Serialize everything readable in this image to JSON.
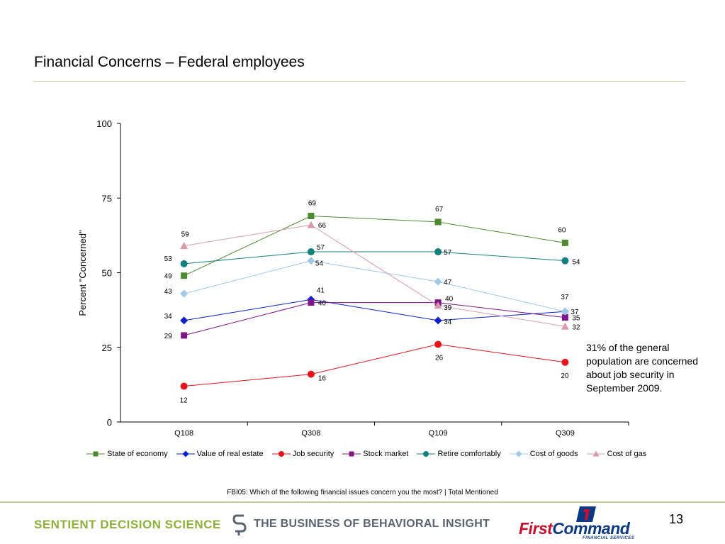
{
  "slide": {
    "title": "Financial Concerns – Federal employees",
    "page_number": "13"
  },
  "annotation": "31% of the general population are concerned about job security in September 2009.",
  "footnote": "FBI05: Which of the following financial issues concern you the most? | Total Mentioned",
  "footer": {
    "sentient_logo": "SENTIENT DECISION SCIENCE",
    "tagline": "THE BUSINESS OF BEHAVIORAL INSIGHT",
    "partner_logo_first": "First",
    "partner_logo_command": "Command",
    "partner_logo_sub": "FINANCIAL SERVICES"
  },
  "chart_data": {
    "type": "line",
    "categories": [
      "Q108",
      "Q308",
      "Q109",
      "Q309"
    ],
    "ylabel": "Percent \"Concerned\"",
    "ylim": [
      0,
      100
    ],
    "yticks": [
      0,
      25,
      50,
      75,
      100
    ],
    "legend_position": "bottom",
    "series": [
      {
        "name": "State of economy",
        "values": [
          49,
          69,
          67,
          60
        ],
        "color": "#4e8a2e",
        "marker": "square"
      },
      {
        "name": "Value of real estate",
        "values": [
          34,
          41,
          34,
          37
        ],
        "color": "#0a1fd0",
        "marker": "diamond"
      },
      {
        "name": "Job security",
        "values": [
          12,
          16,
          26,
          20
        ],
        "color": "#e8141b",
        "marker": "circle"
      },
      {
        "name": "Stock market",
        "values": [
          29,
          40,
          40,
          35
        ],
        "color": "#7e1589",
        "marker": "square"
      },
      {
        "name": "Retire comfortably",
        "values": [
          53,
          57,
          57,
          54
        ],
        "color": "#11807e",
        "marker": "circle"
      },
      {
        "name": "Cost of goods",
        "values": [
          43,
          54,
          47,
          37
        ],
        "color": "#9fc8ea",
        "marker": "diamond"
      },
      {
        "name": "Cost of gas",
        "values": [
          59,
          66,
          39,
          32
        ],
        "color": "#d99aac",
        "marker": "triangle"
      }
    ]
  }
}
